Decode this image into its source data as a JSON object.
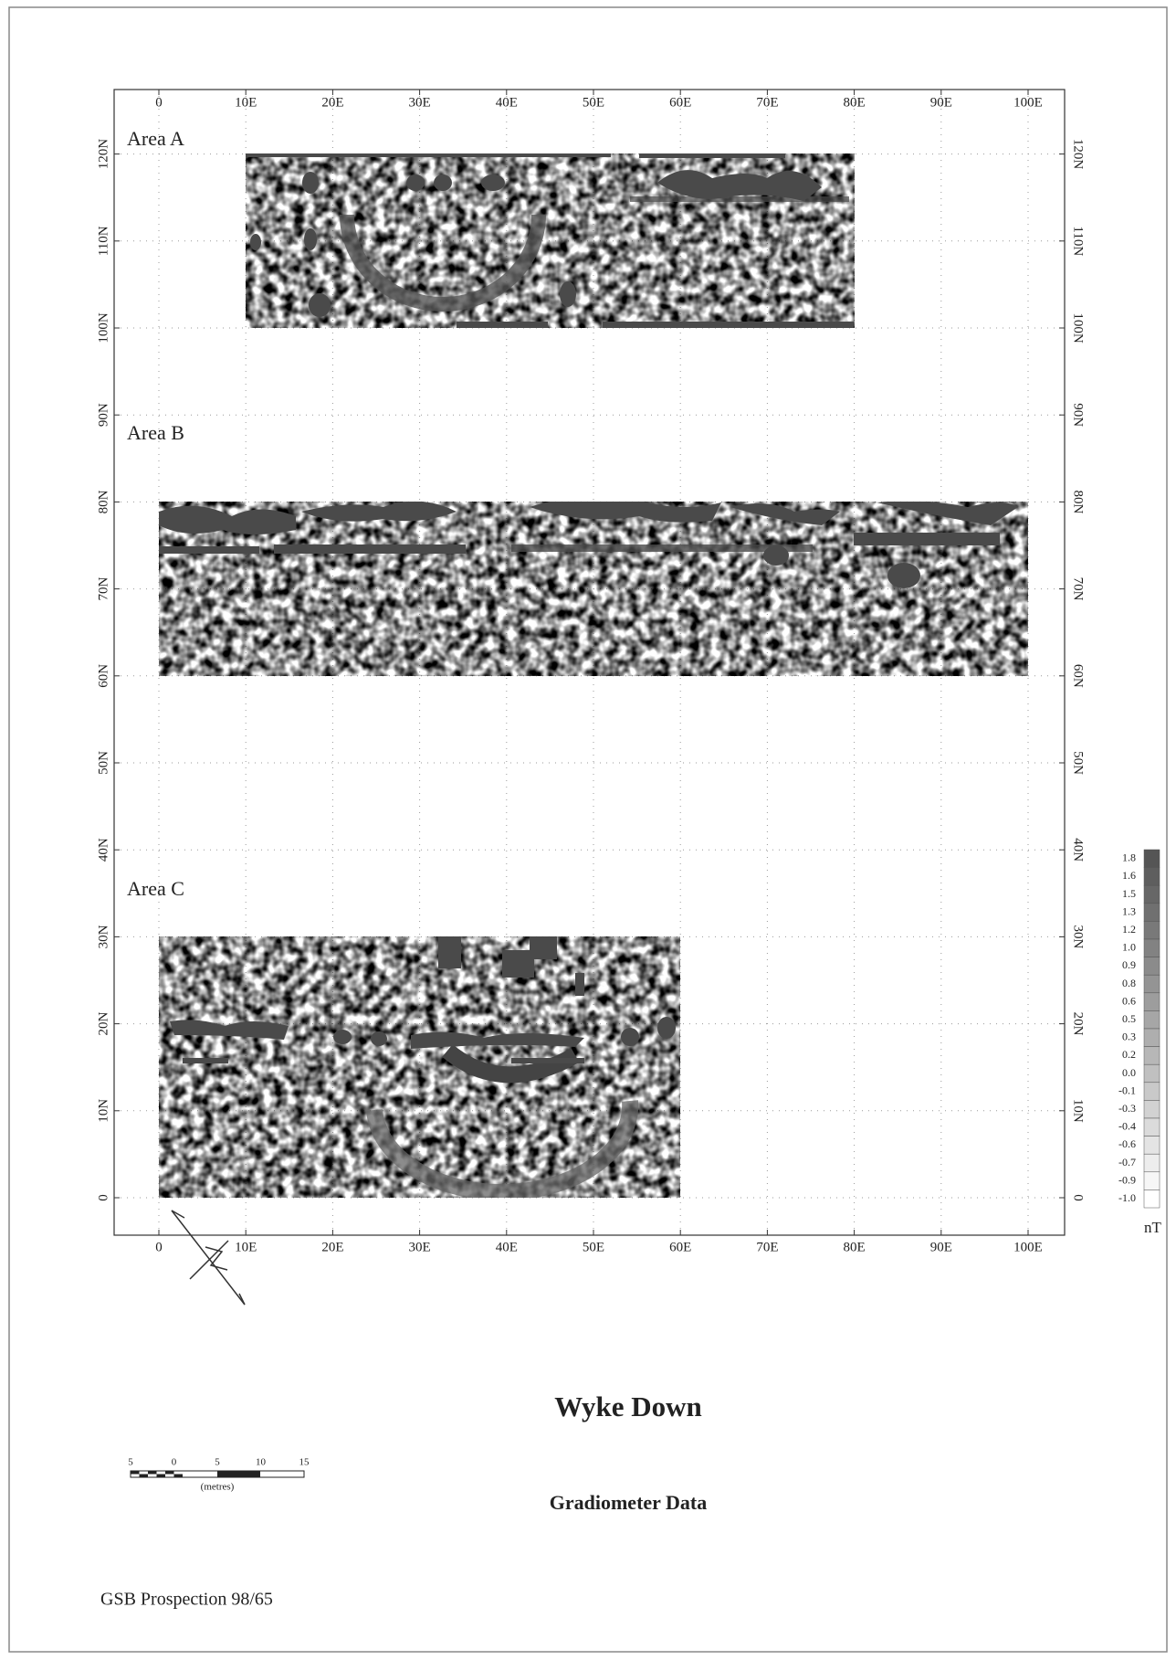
{
  "title": "Wyke Down",
  "subtitle": "Gradiometer Data",
  "footer": "GSB Prospection 98/65",
  "areas": [
    "Area A",
    "Area B",
    "Area C"
  ],
  "x_labels": [
    "0",
    "10E",
    "20E",
    "30E",
    "40E",
    "50E",
    "60E",
    "70E",
    "80E",
    "90E",
    "100E"
  ],
  "y_labels": [
    "0",
    "10N",
    "20N",
    "30N",
    "40N",
    "50N",
    "60N",
    "70N",
    "80N",
    "90N",
    "100N",
    "110N",
    "120N"
  ],
  "legend": {
    "labels": [
      "1.8",
      "1.6",
      "1.5",
      "1.3",
      "1.2",
      "1.0",
      "0.9",
      "0.8",
      "0.6",
      "0.5",
      "0.3",
      "0.2",
      "0.0",
      "-0.1",
      "-0.3",
      "-0.4",
      "-0.6",
      "-0.7",
      "-0.9",
      "-1.0"
    ],
    "unit": "nT"
  },
  "scale_bar": {
    "labels": [
      "5",
      "0",
      "5",
      "10",
      "15"
    ],
    "unit": "(metres)"
  }
}
